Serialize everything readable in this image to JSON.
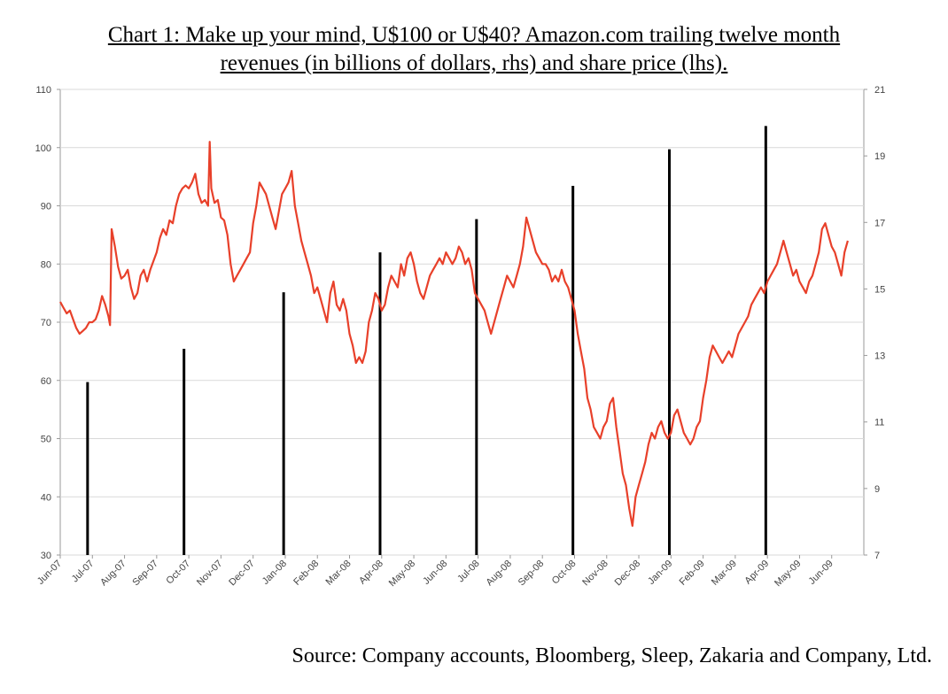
{
  "title_line1": "Chart 1: Make up your mind, U$100 or U$40? Amazon.com trailing twelve month",
  "title_line2": "revenues (in billions of dollars, rhs) and share price (lhs).",
  "source": "Source: Company accounts, Bloomberg, Sleep, Zakaria and Company, Ltd.",
  "colors": {
    "price_line": "#e8402a",
    "revenue_bars": "#000000",
    "grid": "#d9d9d9",
    "axis": "#999999"
  },
  "chart_data": {
    "type": "line+bar",
    "grid": true,
    "x_categories": [
      "Jun-07",
      "Jul-07",
      "Aug-07",
      "Sep-07",
      "Oct-07",
      "Nov-07",
      "Dec-07",
      "Jan-08",
      "Feb-08",
      "Mar-08",
      "Apr-08",
      "May-08",
      "Jun-08",
      "Jul-08",
      "Aug-08",
      "Sep-08",
      "Oct-08",
      "Nov-08",
      "Dec-08",
      "Jan-09",
      "Feb-09",
      "Mar-09",
      "Apr-09",
      "May-09",
      "Jun-09"
    ],
    "left_axis": {
      "min": 30,
      "max": 110,
      "ticks": [
        "30",
        "40",
        "50",
        "60",
        "70",
        "80",
        "90",
        "100",
        "110"
      ]
    },
    "right_axis": {
      "min": 7,
      "max": 21,
      "ticks": [
        "7",
        "9",
        "11",
        "13",
        "15",
        "17",
        "19",
        "21"
      ]
    },
    "series": [
      {
        "axis": "left",
        "kind": "line",
        "points": [
          [
            0.0,
            73.5
          ],
          [
            0.1,
            72.5
          ],
          [
            0.2,
            71.5
          ],
          [
            0.3,
            72
          ],
          [
            0.4,
            70.5
          ],
          [
            0.5,
            69
          ],
          [
            0.6,
            68
          ],
          [
            0.7,
            68.5
          ],
          [
            0.8,
            69
          ],
          [
            0.9,
            70
          ],
          [
            1.0,
            70
          ],
          [
            1.1,
            70.5
          ],
          [
            1.2,
            72
          ],
          [
            1.3,
            74.5
          ],
          [
            1.4,
            73
          ],
          [
            1.5,
            71
          ],
          [
            1.55,
            69.5
          ],
          [
            1.6,
            86
          ],
          [
            1.7,
            83
          ],
          [
            1.8,
            79.5
          ],
          [
            1.9,
            77.5
          ],
          [
            2.0,
            78
          ],
          [
            2.1,
            79
          ],
          [
            2.2,
            76
          ],
          [
            2.3,
            74
          ],
          [
            2.4,
            75
          ],
          [
            2.5,
            78
          ],
          [
            2.6,
            79
          ],
          [
            2.7,
            77
          ],
          [
            2.8,
            79
          ],
          [
            3.0,
            82
          ],
          [
            3.1,
            84.5
          ],
          [
            3.2,
            86
          ],
          [
            3.3,
            85
          ],
          [
            3.4,
            87.5
          ],
          [
            3.5,
            87
          ],
          [
            3.6,
            90
          ],
          [
            3.7,
            92
          ],
          [
            3.8,
            93
          ],
          [
            3.9,
            93.5
          ],
          [
            4.0,
            93
          ],
          [
            4.1,
            94
          ],
          [
            4.2,
            95.5
          ],
          [
            4.3,
            92
          ],
          [
            4.4,
            90.5
          ],
          [
            4.5,
            91
          ],
          [
            4.6,
            90
          ],
          [
            4.65,
            101
          ],
          [
            4.7,
            93
          ],
          [
            4.8,
            90.5
          ],
          [
            4.9,
            91
          ],
          [
            5.0,
            88
          ],
          [
            5.1,
            87.5
          ],
          [
            5.2,
            85
          ],
          [
            5.3,
            80
          ],
          [
            5.4,
            77
          ],
          [
            5.5,
            78
          ],
          [
            5.6,
            79
          ],
          [
            5.7,
            80
          ],
          [
            5.8,
            81
          ],
          [
            5.9,
            82
          ],
          [
            6.0,
            87
          ],
          [
            6.1,
            90
          ],
          [
            6.2,
            94
          ],
          [
            6.3,
            93
          ],
          [
            6.4,
            92
          ],
          [
            6.5,
            90
          ],
          [
            6.6,
            88
          ],
          [
            6.7,
            86
          ],
          [
            6.8,
            89
          ],
          [
            6.9,
            92
          ],
          [
            7.0,
            93
          ],
          [
            7.1,
            94
          ],
          [
            7.2,
            96
          ],
          [
            7.3,
            90
          ],
          [
            7.4,
            87
          ],
          [
            7.5,
            84
          ],
          [
            7.6,
            82
          ],
          [
            7.7,
            80
          ],
          [
            7.8,
            78
          ],
          [
            7.9,
            75
          ],
          [
            8.0,
            76
          ],
          [
            8.1,
            74
          ],
          [
            8.2,
            72
          ],
          [
            8.3,
            70
          ],
          [
            8.4,
            75
          ],
          [
            8.5,
            77
          ],
          [
            8.6,
            73
          ],
          [
            8.7,
            72
          ],
          [
            8.8,
            74
          ],
          [
            8.9,
            72
          ],
          [
            9.0,
            68
          ],
          [
            9.1,
            66
          ],
          [
            9.2,
            63
          ],
          [
            9.3,
            64
          ],
          [
            9.4,
            63
          ],
          [
            9.5,
            65
          ],
          [
            9.6,
            70
          ],
          [
            9.7,
            72
          ],
          [
            9.8,
            75
          ],
          [
            9.9,
            74
          ],
          [
            10.0,
            72
          ],
          [
            10.1,
            73
          ],
          [
            10.2,
            76
          ],
          [
            10.3,
            78
          ],
          [
            10.4,
            77
          ],
          [
            10.5,
            76
          ],
          [
            10.6,
            80
          ],
          [
            10.7,
            78
          ],
          [
            10.8,
            81
          ],
          [
            10.9,
            82
          ],
          [
            11.0,
            80
          ],
          [
            11.1,
            77
          ],
          [
            11.2,
            75
          ],
          [
            11.3,
            74
          ],
          [
            11.4,
            76
          ],
          [
            11.5,
            78
          ],
          [
            11.6,
            79
          ],
          [
            11.7,
            80
          ],
          [
            11.8,
            81
          ],
          [
            11.9,
            80
          ],
          [
            12.0,
            82
          ],
          [
            12.1,
            81
          ],
          [
            12.2,
            80
          ],
          [
            12.3,
            81
          ],
          [
            12.4,
            83
          ],
          [
            12.5,
            82
          ],
          [
            12.6,
            80
          ],
          [
            12.7,
            81
          ],
          [
            12.8,
            79
          ],
          [
            12.9,
            75
          ],
          [
            13.0,
            74
          ],
          [
            13.1,
            73
          ],
          [
            13.2,
            72
          ],
          [
            13.3,
            70
          ],
          [
            13.4,
            68
          ],
          [
            13.5,
            70
          ],
          [
            13.6,
            72
          ],
          [
            13.7,
            74
          ],
          [
            13.8,
            76
          ],
          [
            13.9,
            78
          ],
          [
            14.0,
            77
          ],
          [
            14.1,
            76
          ],
          [
            14.2,
            78
          ],
          [
            14.3,
            80
          ],
          [
            14.4,
            83
          ],
          [
            14.5,
            88
          ],
          [
            14.6,
            86
          ],
          [
            14.7,
            84
          ],
          [
            14.8,
            82
          ],
          [
            14.9,
            81
          ],
          [
            15.0,
            80
          ],
          [
            15.1,
            80
          ],
          [
            15.2,
            79
          ],
          [
            15.3,
            77
          ],
          [
            15.4,
            78
          ],
          [
            15.5,
            77
          ],
          [
            15.6,
            79
          ],
          [
            15.7,
            77
          ],
          [
            15.8,
            76
          ],
          [
            15.9,
            74
          ],
          [
            16.0,
            72
          ],
          [
            16.1,
            68
          ],
          [
            16.2,
            65
          ],
          [
            16.3,
            62
          ],
          [
            16.4,
            57
          ],
          [
            16.5,
            55
          ],
          [
            16.6,
            52
          ],
          [
            16.7,
            51
          ],
          [
            16.8,
            50
          ],
          [
            16.9,
            52
          ],
          [
            17.0,
            53
          ],
          [
            17.1,
            56
          ],
          [
            17.2,
            57
          ],
          [
            17.3,
            52
          ],
          [
            17.4,
            48
          ],
          [
            17.5,
            44
          ],
          [
            17.6,
            42
          ],
          [
            17.7,
            38
          ],
          [
            17.8,
            35
          ],
          [
            17.9,
            40
          ],
          [
            18.0,
            42
          ],
          [
            18.1,
            44
          ],
          [
            18.2,
            46
          ],
          [
            18.3,
            49
          ],
          [
            18.4,
            51
          ],
          [
            18.5,
            50
          ],
          [
            18.6,
            52
          ],
          [
            18.7,
            53
          ],
          [
            18.8,
            51
          ],
          [
            18.9,
            50
          ],
          [
            19.0,
            51
          ],
          [
            19.1,
            54
          ],
          [
            19.2,
            55
          ],
          [
            19.3,
            53
          ],
          [
            19.4,
            51
          ],
          [
            19.5,
            50
          ],
          [
            19.6,
            49
          ],
          [
            19.7,
            50
          ],
          [
            19.8,
            52
          ],
          [
            19.9,
            53
          ],
          [
            20.0,
            57
          ],
          [
            20.1,
            60
          ],
          [
            20.2,
            64
          ],
          [
            20.3,
            66
          ],
          [
            20.4,
            65
          ],
          [
            20.5,
            64
          ],
          [
            20.6,
            63
          ],
          [
            20.7,
            64
          ],
          [
            20.8,
            65
          ],
          [
            20.9,
            64
          ],
          [
            21.0,
            66
          ],
          [
            21.1,
            68
          ],
          [
            21.2,
            69
          ],
          [
            21.3,
            70
          ],
          [
            21.4,
            71
          ],
          [
            21.5,
            73
          ],
          [
            21.6,
            74
          ],
          [
            21.7,
            75
          ],
          [
            21.8,
            76
          ],
          [
            21.9,
            75
          ],
          [
            22.0,
            77
          ],
          [
            22.1,
            78
          ],
          [
            22.2,
            79
          ],
          [
            22.3,
            80
          ],
          [
            22.4,
            82
          ],
          [
            22.5,
            84
          ],
          [
            22.6,
            82
          ],
          [
            22.7,
            80
          ],
          [
            22.8,
            78
          ],
          [
            22.9,
            79
          ],
          [
            23.0,
            77
          ],
          [
            23.1,
            76
          ],
          [
            23.2,
            75
          ],
          [
            23.3,
            77
          ],
          [
            23.4,
            78
          ],
          [
            23.5,
            80
          ],
          [
            23.6,
            82
          ],
          [
            23.7,
            86
          ],
          [
            23.8,
            87
          ],
          [
            23.9,
            85
          ],
          [
            24.0,
            83
          ],
          [
            24.1,
            82
          ],
          [
            24.2,
            80
          ],
          [
            24.3,
            78
          ],
          [
            24.4,
            82
          ],
          [
            24.5,
            84
          ]
        ]
      },
      {
        "axis": "right",
        "kind": "bar",
        "points": [
          [
            0.85,
            12.2
          ],
          [
            3.85,
            13.2
          ],
          [
            6.95,
            14.9
          ],
          [
            9.95,
            16.1
          ],
          [
            12.95,
            17.1
          ],
          [
            15.95,
            18.1
          ],
          [
            18.95,
            19.2
          ],
          [
            21.95,
            19.9
          ]
        ]
      }
    ]
  }
}
